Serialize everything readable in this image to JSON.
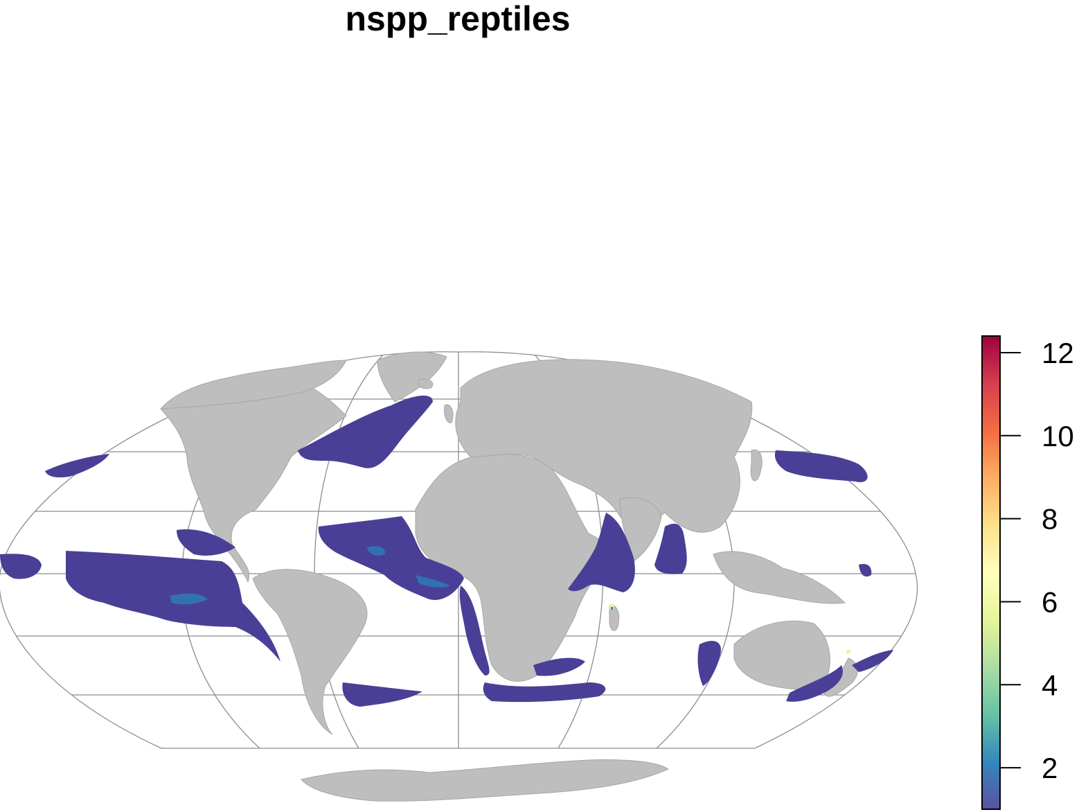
{
  "title": "nspp_reptiles",
  "map": {
    "projection": "Mollweide",
    "land_color": "#bebebe",
    "graticule_color": "#8c8c8c",
    "richness_color_low": "#4a3f96",
    "richness_color_mid": "#2a7fb8"
  },
  "legend": {
    "type": "continuous colorbar",
    "palette": "Spectral (reversed)",
    "min": 1,
    "max": 12.4,
    "colors": [
      "#5e4fa2",
      "#3288bd",
      "#66c2a5",
      "#abdda4",
      "#e6f598",
      "#ffffbf",
      "#fee08b",
      "#fdae61",
      "#f46d43",
      "#d53e4f",
      "#9e0142"
    ],
    "ticks": [
      {
        "value": 2,
        "label": "2"
      },
      {
        "value": 4,
        "label": "4"
      },
      {
        "value": 6,
        "label": "6"
      },
      {
        "value": 8,
        "label": "8"
      },
      {
        "value": 10,
        "label": "10"
      },
      {
        "value": 12,
        "label": "12"
      }
    ]
  }
}
